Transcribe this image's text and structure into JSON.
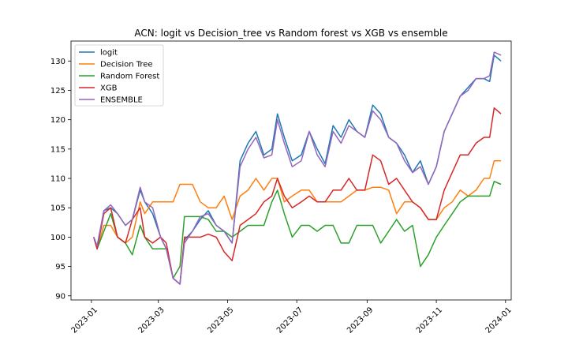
{
  "chart_data": {
    "type": "line",
    "title": "ACN: logit vs Decision_tree vs Random forest vs XGB vs ensemble",
    "xlabel": "",
    "ylabel": "",
    "x_axis": "date",
    "xlim": [
      "2022-12-14",
      "2024-01-06"
    ],
    "ylim": [
      89.3,
      133.4
    ],
    "x_ticks": [
      "2023-01",
      "2023-03",
      "2023-05",
      "2023-07",
      "2023-09",
      "2023-11",
      "2024-01"
    ],
    "x_tick_dates": [
      "2023-01-01",
      "2023-03-01",
      "2023-05-01",
      "2023-07-01",
      "2023-09-01",
      "2023-11-01",
      "2024-01-01"
    ],
    "y_ticks": [
      90,
      95,
      100,
      105,
      110,
      115,
      120,
      125,
      130
    ],
    "grid": false,
    "legend_position": "upper left",
    "x": [
      "2023-01-03",
      "2023-01-06",
      "2023-01-12",
      "2023-01-18",
      "2023-01-24",
      "2023-01-31",
      "2023-02-06",
      "2023-02-13",
      "2023-02-17",
      "2023-02-24",
      "2023-03-03",
      "2023-03-08",
      "2023-03-14",
      "2023-03-20",
      "2023-03-24",
      "2023-03-31",
      "2023-04-07",
      "2023-04-14",
      "2023-04-21",
      "2023-04-28",
      "2023-05-05",
      "2023-05-12",
      "2023-05-19",
      "2023-05-26",
      "2023-06-02",
      "2023-06-09",
      "2023-06-14",
      "2023-06-20",
      "2023-06-27",
      "2023-07-05",
      "2023-07-12",
      "2023-07-19",
      "2023-07-26",
      "2023-08-02",
      "2023-08-09",
      "2023-08-16",
      "2023-08-23",
      "2023-08-30",
      "2023-09-06",
      "2023-09-13",
      "2023-09-20",
      "2023-09-27",
      "2023-10-04",
      "2023-10-11",
      "2023-10-18",
      "2023-10-25",
      "2023-11-01",
      "2023-11-08",
      "2023-11-15",
      "2023-11-22",
      "2023-11-29",
      "2023-12-06",
      "2023-12-13",
      "2023-12-18",
      "2023-12-22",
      "2023-12-28"
    ],
    "series": [
      {
        "name": "logit",
        "color": "#1f77b4",
        "values": [
          100,
          98.5,
          104.5,
          105,
          104,
          102,
          103,
          108,
          106,
          104,
          100,
          98,
          93,
          92,
          99.5,
          101,
          103,
          104.5,
          102,
          101,
          99,
          113,
          116,
          118,
          114,
          115,
          121,
          117,
          113,
          114,
          118,
          115,
          112.5,
          119,
          117,
          120,
          118,
          117,
          122.5,
          121,
          117,
          116,
          114,
          111,
          113,
          109,
          112,
          118,
          121,
          124,
          125.5,
          127,
          127,
          126.5,
          131,
          130
        ]
      },
      {
        "name": "Decision Tree",
        "color": "#ff7f0e",
        "values": [
          100,
          98,
          102,
          102,
          100,
          99,
          100,
          106,
          104,
          106,
          106,
          106,
          106,
          109,
          109,
          109,
          106,
          105,
          105,
          107,
          103,
          107,
          108,
          110,
          108,
          110,
          110,
          106,
          107,
          108,
          108,
          106,
          106,
          106,
          106,
          107,
          108,
          108,
          108.5,
          108.5,
          108,
          104,
          106,
          106,
          105,
          103,
          103,
          105,
          106,
          108,
          107,
          108,
          110,
          110,
          113,
          113
        ]
      },
      {
        "name": "Random Forest",
        "color": "#2ca02c",
        "values": [
          100,
          98,
          101,
          104,
          100,
          99,
          97,
          102,
          100,
          98,
          98,
          98,
          93,
          95,
          103.5,
          103.5,
          103.5,
          103,
          101,
          101,
          100,
          101,
          102,
          102,
          102,
          106,
          108,
          104,
          100,
          102,
          102,
          101,
          102,
          102,
          99,
          99,
          102,
          102,
          102,
          99,
          101,
          103,
          101,
          102,
          95,
          97,
          100,
          102,
          104,
          106,
          107,
          107,
          107,
          107,
          109.5,
          109
        ]
      },
      {
        "name": "XGB",
        "color": "#d62728",
        "values": [
          100,
          98,
          104,
          105,
          100,
          99,
          103,
          105,
          100,
          99,
          100,
          99,
          93,
          92,
          100,
          100,
          100,
          100.5,
          100,
          97.5,
          96,
          102,
          103,
          104,
          106,
          107,
          110,
          107,
          105,
          106,
          107,
          106,
          106,
          108,
          108,
          110,
          108,
          108,
          114,
          113,
          109,
          110,
          108,
          106,
          105,
          103,
          103,
          108,
          111,
          114,
          114,
          116,
          117,
          117,
          122,
          121
        ]
      },
      {
        "name": "ENSEMBLE",
        "color": "#9467bd",
        "values": [
          100,
          98.5,
          104.5,
          105.5,
          104,
          102,
          103,
          108.5,
          106,
          105,
          100,
          98,
          93,
          92,
          99,
          101,
          103.5,
          104,
          102,
          101,
          99,
          112,
          115,
          117,
          113.5,
          114,
          120,
          116,
          112,
          113,
          118,
          114,
          112,
          118,
          116,
          119,
          118,
          117,
          121.5,
          120,
          117,
          116,
          113,
          111,
          112,
          109,
          112,
          118,
          121,
          124,
          125,
          127,
          127,
          127.5,
          131.5,
          131
        ]
      }
    ]
  }
}
